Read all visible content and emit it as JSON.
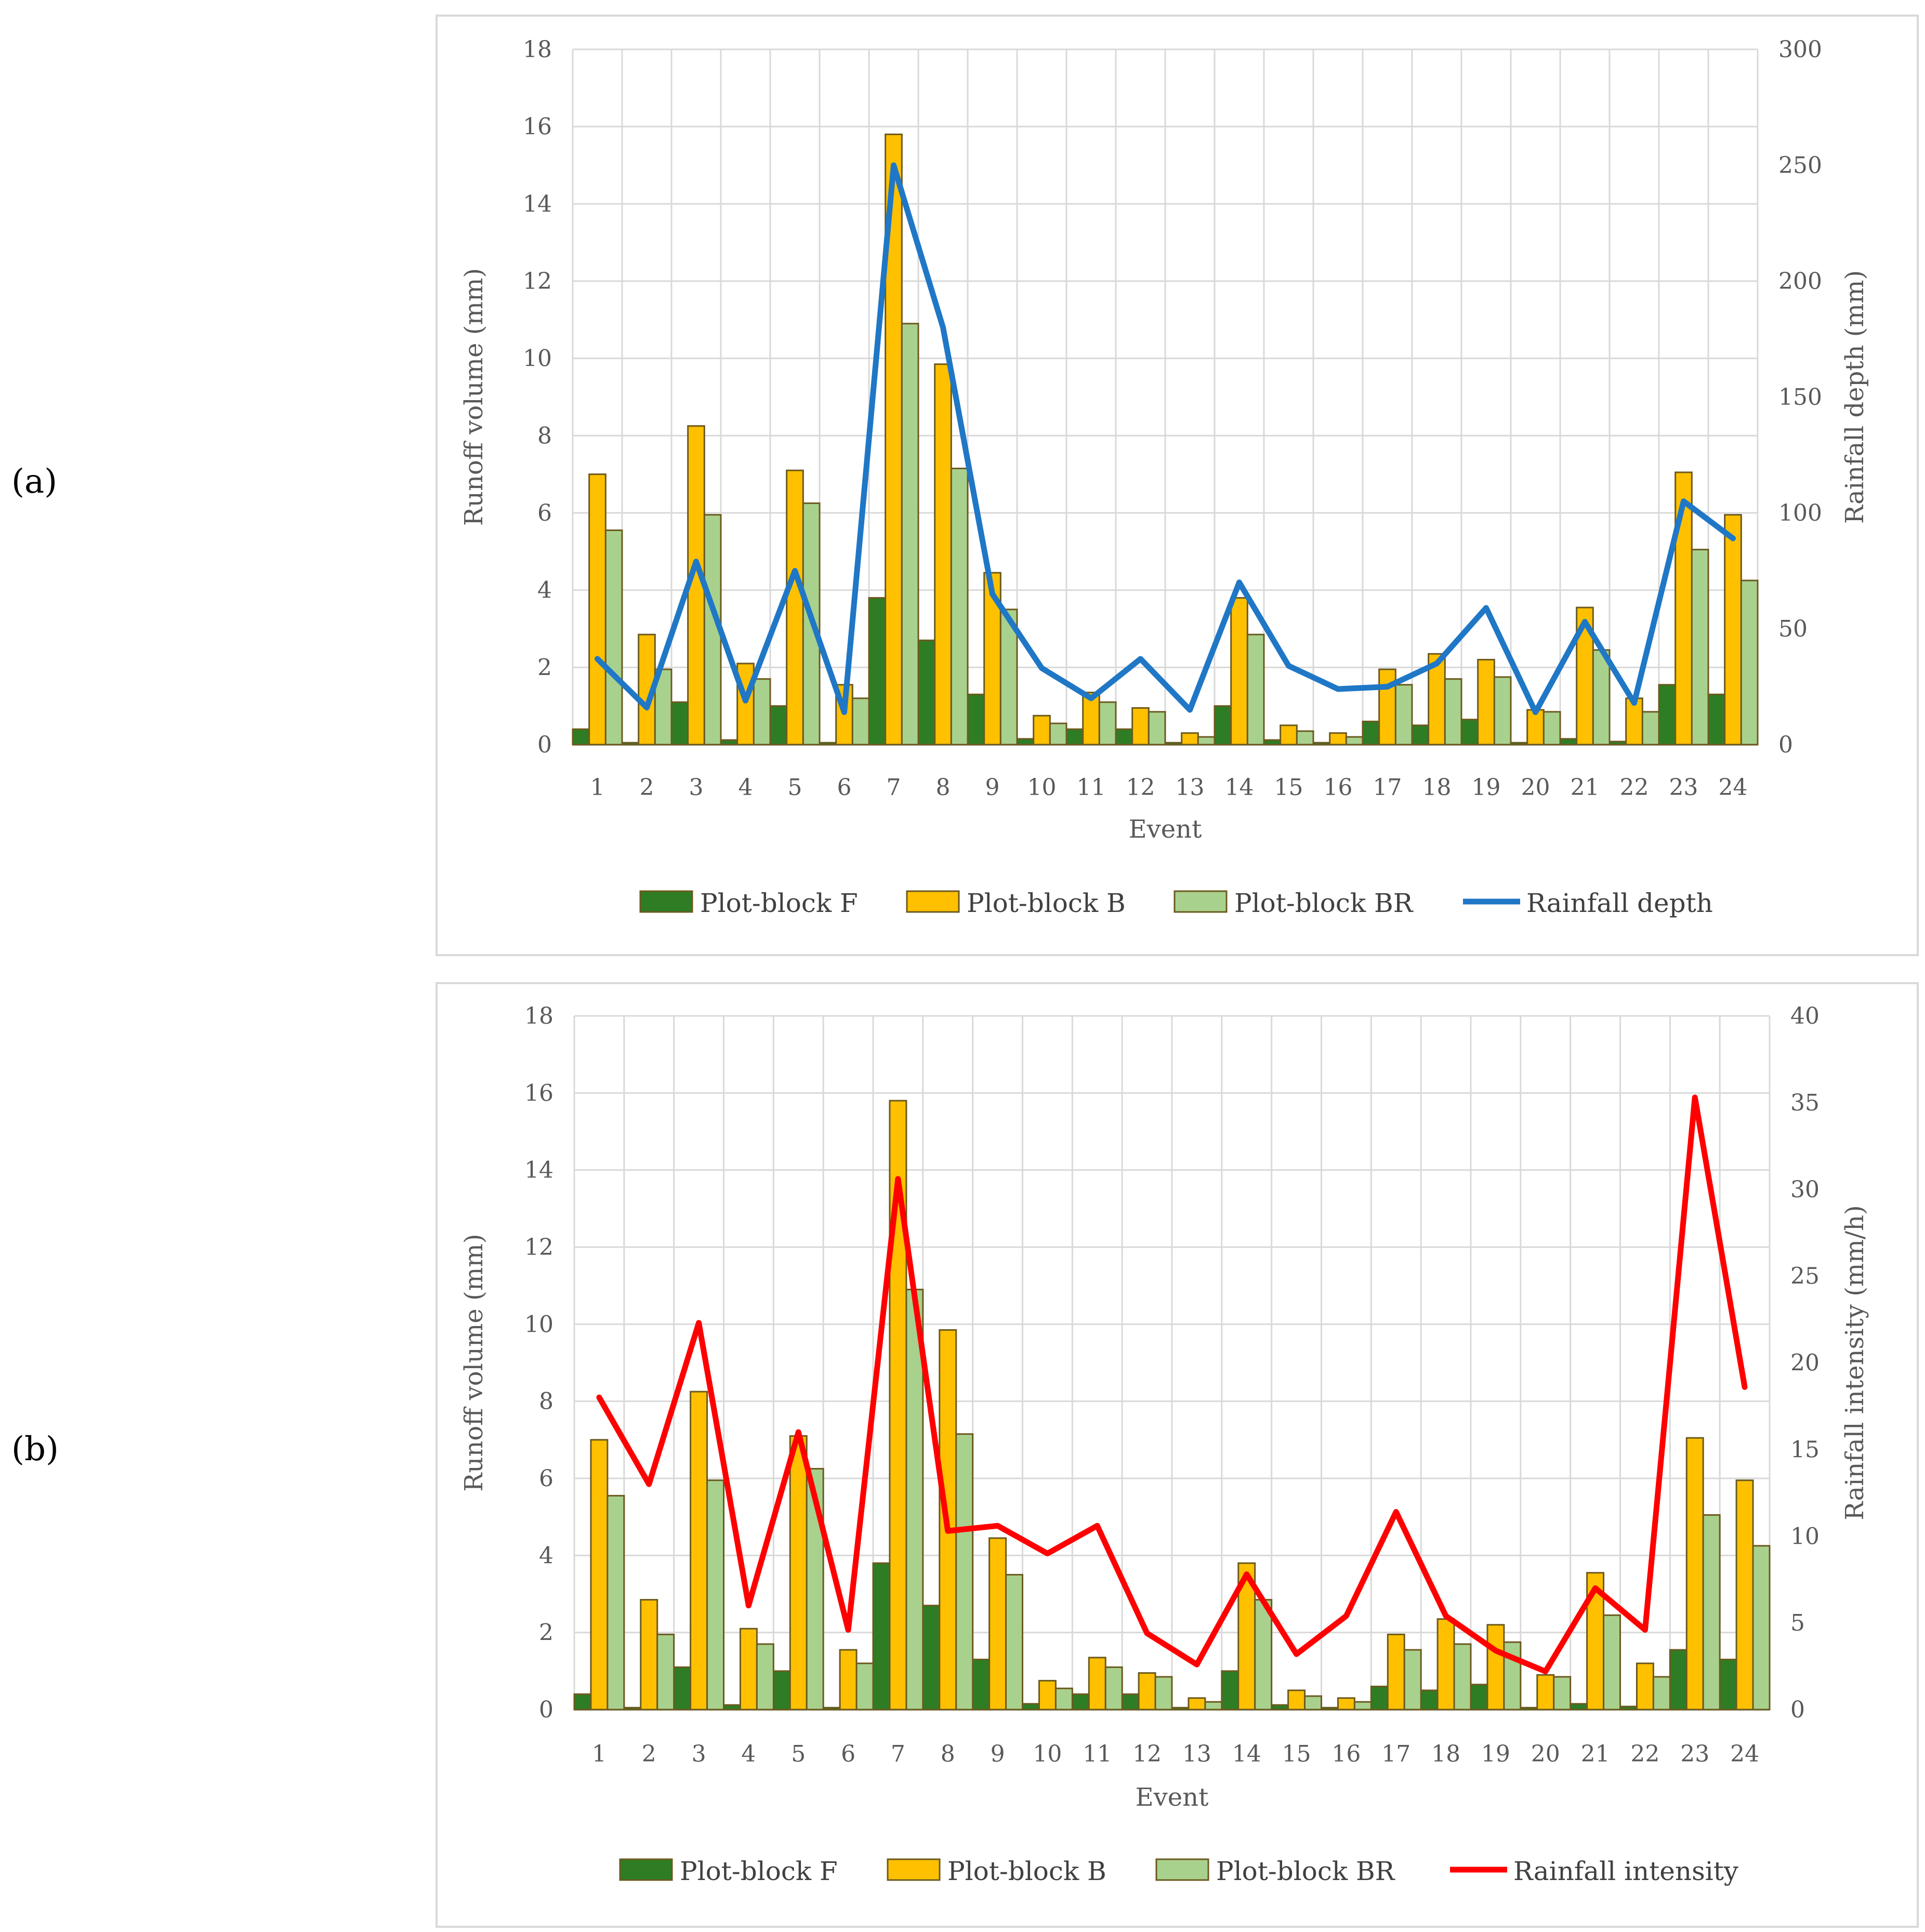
{
  "panels": [
    {
      "label": "(a)"
    },
    {
      "label": "(b)"
    }
  ],
  "chart_data": [
    {
      "type": "bar",
      "title": "",
      "categories": [
        "1",
        "2",
        "3",
        "4",
        "5",
        "6",
        "7",
        "8",
        "9",
        "10",
        "11",
        "12",
        "13",
        "14",
        "15",
        "16",
        "17",
        "18",
        "19",
        "20",
        "21",
        "22",
        "23",
        "24"
      ],
      "xlabel": "Event",
      "ylabel": "Runoff volume (mm)",
      "ylim": [
        0,
        18
      ],
      "yticks": [
        "0",
        "2",
        "4",
        "6",
        "8",
        "10",
        "12",
        "14",
        "16",
        "18"
      ],
      "y2label": "Rainfall depth (mm)",
      "y2lim": [
        0,
        300
      ],
      "y2ticks": [
        "0",
        "50",
        "100",
        "150",
        "200",
        "250",
        "300"
      ],
      "series": [
        {
          "name": "Plot-block F",
          "kind": "bar",
          "color": "#2e7d24",
          "values": [
            0.4,
            0.05,
            1.1,
            0.12,
            1.0,
            0.05,
            3.8,
            2.7,
            1.3,
            0.15,
            0.4,
            0.4,
            0.05,
            1.0,
            0.12,
            0.05,
            0.6,
            0.5,
            0.65,
            0.05,
            0.15,
            0.08,
            1.55,
            1.3
          ]
        },
        {
          "name": "Plot-block B",
          "kind": "bar",
          "color": "#ffc000",
          "values": [
            7.0,
            2.85,
            8.25,
            2.1,
            7.1,
            1.55,
            15.8,
            9.85,
            4.45,
            0.75,
            1.35,
            0.95,
            0.3,
            3.8,
            0.5,
            0.3,
            1.95,
            2.35,
            2.2,
            0.9,
            3.55,
            1.2,
            7.05,
            5.95
          ]
        },
        {
          "name": "Plot-block BR",
          "kind": "bar",
          "color": "#a9d18e",
          "values": [
            5.55,
            1.95,
            5.95,
            1.7,
            6.25,
            1.2,
            10.9,
            7.15,
            3.5,
            0.55,
            1.1,
            0.85,
            0.2,
            2.85,
            0.35,
            0.2,
            1.55,
            1.7,
            1.75,
            0.85,
            2.45,
            0.85,
            5.05,
            4.25
          ]
        },
        {
          "name": "Rainfall depth",
          "kind": "line",
          "axis": "right",
          "color": "#1f77c6",
          "values": [
            37,
            16,
            79,
            19,
            75,
            14,
            250,
            180,
            65,
            33,
            20,
            37,
            15,
            70,
            34,
            24,
            25,
            35,
            59,
            14,
            53,
            18,
            105,
            89
          ]
        }
      ],
      "legend_position": "bottom"
    },
    {
      "type": "bar",
      "title": "",
      "categories": [
        "1",
        "2",
        "3",
        "4",
        "5",
        "6",
        "7",
        "8",
        "9",
        "10",
        "11",
        "12",
        "13",
        "14",
        "15",
        "16",
        "17",
        "18",
        "19",
        "20",
        "21",
        "22",
        "23",
        "24"
      ],
      "xlabel": "Event",
      "ylabel": "Runoff volume (mm)",
      "ylim": [
        0,
        18
      ],
      "yticks": [
        "0",
        "2",
        "4",
        "6",
        "8",
        "10",
        "12",
        "14",
        "16",
        "18"
      ],
      "y2label": "Rainfall intensity (mm/h)",
      "y2lim": [
        0,
        40
      ],
      "y2ticks": [
        "0",
        "5",
        "10",
        "15",
        "20",
        "25",
        "30",
        "35",
        "40"
      ],
      "series": [
        {
          "name": "Plot-block F",
          "kind": "bar",
          "color": "#2e7d24",
          "values": [
            0.4,
            0.05,
            1.1,
            0.12,
            1.0,
            0.05,
            3.8,
            2.7,
            1.3,
            0.15,
            0.4,
            0.4,
            0.05,
            1.0,
            0.12,
            0.05,
            0.6,
            0.5,
            0.65,
            0.05,
            0.15,
            0.08,
            1.55,
            1.3
          ]
        },
        {
          "name": "Plot-block B",
          "kind": "bar",
          "color": "#ffc000",
          "values": [
            7.0,
            2.85,
            8.25,
            2.1,
            7.1,
            1.55,
            15.8,
            9.85,
            4.45,
            0.75,
            1.35,
            0.95,
            0.3,
            3.8,
            0.5,
            0.3,
            1.95,
            2.35,
            2.2,
            0.9,
            3.55,
            1.2,
            7.05,
            5.95
          ]
        },
        {
          "name": "Plot-block BR",
          "kind": "bar",
          "color": "#a9d18e",
          "values": [
            5.55,
            1.95,
            5.95,
            1.7,
            6.25,
            1.2,
            10.9,
            7.15,
            3.5,
            0.55,
            1.1,
            0.85,
            0.2,
            2.85,
            0.35,
            0.2,
            1.55,
            1.7,
            1.75,
            0.85,
            2.45,
            0.85,
            5.05,
            4.25
          ]
        },
        {
          "name": "Rainfall intensity",
          "kind": "line",
          "axis": "right",
          "color": "#ff0000",
          "values": [
            18,
            13,
            22.3,
            6,
            16,
            4.6,
            30.6,
            10.3,
            10.6,
            9,
            10.6,
            4.4,
            2.6,
            7.8,
            3.2,
            5.4,
            11.4,
            5.4,
            3.4,
            2.2,
            7,
            4.6,
            35.3,
            18.6
          ]
        }
      ],
      "legend_position": "bottom"
    }
  ]
}
